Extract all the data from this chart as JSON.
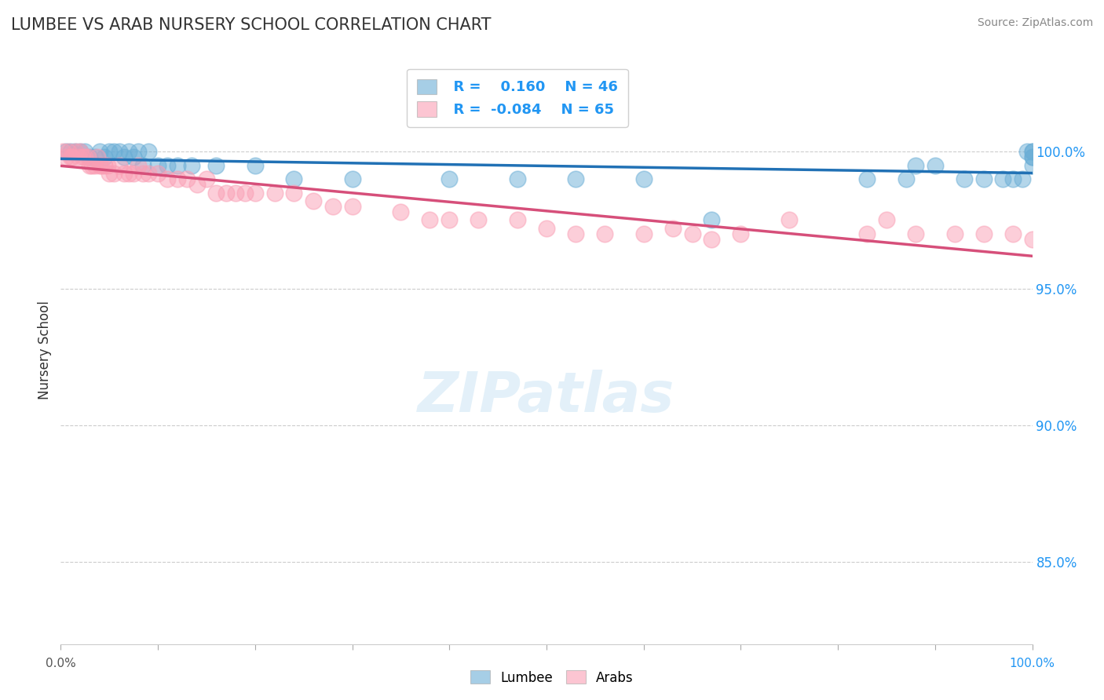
{
  "title": "LUMBEE VS ARAB NURSERY SCHOOL CORRELATION CHART",
  "source": "Source: ZipAtlas.com",
  "ylabel": "Nursery School",
  "ytick_labels": [
    "85.0%",
    "90.0%",
    "95.0%",
    "100.0%"
  ],
  "ytick_values": [
    85.0,
    90.0,
    95.0,
    100.0
  ],
  "xlim": [
    0.0,
    100.0
  ],
  "ylim": [
    82.0,
    103.5
  ],
  "lumbee_R": 0.16,
  "lumbee_N": 46,
  "arab_R": -0.084,
  "arab_N": 65,
  "lumbee_color": "#6baed6",
  "arab_color": "#fa9fb5",
  "lumbee_line_color": "#2171b5",
  "arab_line_color": "#d64f7a",
  "background_color": "#ffffff",
  "lumbee_x": [
    0.5,
    1.0,
    1.5,
    2.0,
    2.5,
    3.0,
    3.5,
    4.0,
    4.5,
    5.0,
    5.5,
    6.0,
    6.5,
    7.0,
    7.5,
    8.0,
    8.5,
    9.0,
    10.0,
    11.0,
    12.0,
    13.5,
    16.0,
    20.0,
    24.0,
    30.0,
    40.0,
    47.0,
    53.0,
    60.0,
    67.0,
    83.0,
    87.0,
    88.0,
    90.0,
    93.0,
    95.0,
    97.0,
    98.0,
    99.0,
    99.5,
    100.0,
    100.0,
    100.0,
    100.0,
    100.0
  ],
  "lumbee_y": [
    100.0,
    100.0,
    100.0,
    100.0,
    100.0,
    99.8,
    99.8,
    100.0,
    99.8,
    100.0,
    100.0,
    100.0,
    99.8,
    100.0,
    99.8,
    100.0,
    99.5,
    100.0,
    99.5,
    99.5,
    99.5,
    99.5,
    99.5,
    99.5,
    99.0,
    99.0,
    99.0,
    99.0,
    99.0,
    99.0,
    97.5,
    99.0,
    99.0,
    99.5,
    99.5,
    99.0,
    99.0,
    99.0,
    99.0,
    99.0,
    100.0,
    99.8,
    99.5,
    99.8,
    100.0,
    100.0
  ],
  "arab_x": [
    0.2,
    0.5,
    0.8,
    1.0,
    1.2,
    1.5,
    1.8,
    2.0,
    2.2,
    2.5,
    2.8,
    3.0,
    3.2,
    3.5,
    3.8,
    4.0,
    4.2,
    4.5,
    4.8,
    5.0,
    5.5,
    6.0,
    6.5,
    7.0,
    7.5,
    8.0,
    8.5,
    9.0,
    10.0,
    11.0,
    12.0,
    13.0,
    14.0,
    15.0,
    16.0,
    17.0,
    18.0,
    19.0,
    20.0,
    22.0,
    24.0,
    26.0,
    28.0,
    30.0,
    35.0,
    38.0,
    40.0,
    43.0,
    47.0,
    50.0,
    53.0,
    56.0,
    60.0,
    63.0,
    65.0,
    67.0,
    70.0,
    75.0,
    83.0,
    85.0,
    88.0,
    92.0,
    95.0,
    98.0,
    100.0
  ],
  "arab_y": [
    100.0,
    99.8,
    100.0,
    99.8,
    99.8,
    100.0,
    99.8,
    100.0,
    99.8,
    99.8,
    99.8,
    99.5,
    99.5,
    99.5,
    99.8,
    99.5,
    99.5,
    99.5,
    99.5,
    99.2,
    99.2,
    99.5,
    99.2,
    99.2,
    99.2,
    99.5,
    99.2,
    99.2,
    99.2,
    99.0,
    99.0,
    99.0,
    98.8,
    99.0,
    98.5,
    98.5,
    98.5,
    98.5,
    98.5,
    98.5,
    98.5,
    98.2,
    98.0,
    98.0,
    97.8,
    97.5,
    97.5,
    97.5,
    97.5,
    97.2,
    97.0,
    97.0,
    97.0,
    97.2,
    97.0,
    96.8,
    97.0,
    97.5,
    97.0,
    97.5,
    97.0,
    97.0,
    97.0,
    97.0,
    96.8
  ]
}
